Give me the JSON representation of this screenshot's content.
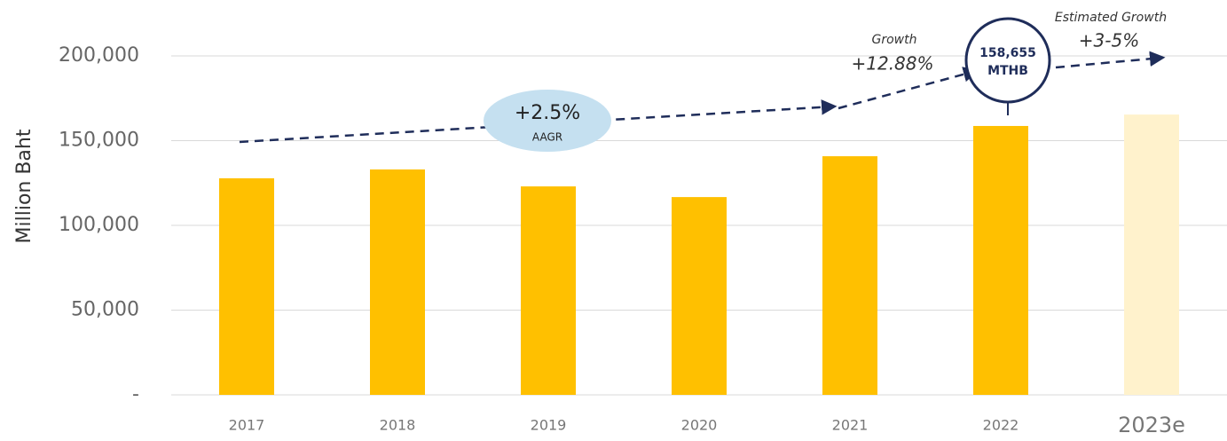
{
  "chart_data": {
    "type": "bar",
    "y_axis_label": "Million Baht",
    "categories": [
      "2017",
      "2018",
      "2019",
      "2020",
      "2021",
      "2022",
      "2023e"
    ],
    "values": [
      127800,
      133000,
      123000,
      116700,
      140800,
      158655,
      165400
    ],
    "colors": [
      "#FFC000",
      "#FFC000",
      "#FFC000",
      "#FFC000",
      "#FFC000",
      "#FFC000",
      "#FFF2CC"
    ],
    "ylim": [
      0,
      200000
    ],
    "yticks": [
      {
        "value": 0,
        "label": "-"
      },
      {
        "value": 50000,
        "label": "50,000"
      },
      {
        "value": 100000,
        "label": "100,000"
      },
      {
        "value": 150000,
        "label": "150,000"
      },
      {
        "value": 200000,
        "label": "200,000"
      }
    ],
    "grid": true,
    "annotations": [
      "+2.5%",
      "AAGR",
      "Growth",
      "+12.88%",
      "158,655",
      "MTHB",
      "Estimated Growth",
      "+3-5%"
    ]
  }
}
